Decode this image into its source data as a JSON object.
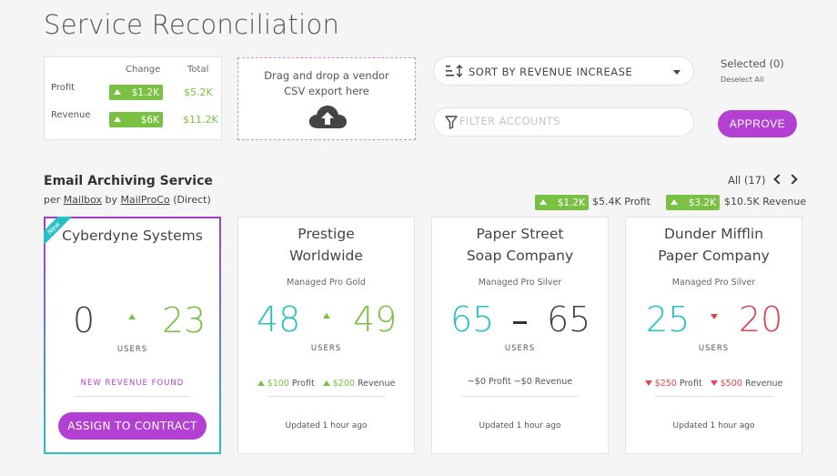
{
  "page": {
    "title": "Service Reconciliation"
  },
  "summary": {
    "change_header": "Change",
    "total_header": "Total",
    "rows": [
      {
        "label": "Profit",
        "change": "$1.2K",
        "total": "$5.2K"
      },
      {
        "label": "Revenue",
        "change": "$6K",
        "total": "$11.2K"
      }
    ]
  },
  "dropzone": {
    "text_line1": "Drag and drop a vendor",
    "text_line2": "CSV export here",
    "icon": "cloud-upload-icon"
  },
  "sort": {
    "label": "SORT BY REVENUE INCREASE",
    "icon": "sort-icon"
  },
  "filter": {
    "placeholder": "FILTER ACCOUNTS",
    "value": "",
    "icon": "funnel-icon"
  },
  "selection": {
    "selected_text": "Selected (0)",
    "deselect_all": "Deselect All"
  },
  "approve_label": "APPROVE",
  "service": {
    "title": "Email Archiving Service",
    "sub_per": "per",
    "sub_unit": "Mailbox",
    "sub_by": "by",
    "sub_vendor": "MailProCo",
    "sub_type": "(Direct)",
    "all_count": "All (17)",
    "profit_change": "$1.2K",
    "profit_total": "$5.4K Profit",
    "revenue_change": "$3.2K",
    "revenue_total": "$10.5K Revenue"
  },
  "cards": [
    {
      "name": "Cyberdyne Systems",
      "tag": "New",
      "from": "0",
      "to": "23",
      "users_label": "USERS",
      "new_revenue": "NEW REVENUE FOUND",
      "action": "ASSIGN TO CONTRACT"
    },
    {
      "name_line1": "Prestige",
      "name_line2": "Worldwide",
      "tier": "Managed Pro Gold",
      "from": "48",
      "to": "49",
      "users_label": "USERS",
      "profit": "$100",
      "profit_label": "Profit",
      "revenue": "$200",
      "revenue_label": "Revenue",
      "updated": "Updated 1 hour ago"
    },
    {
      "name_line1": "Paper Street",
      "name_line2": "Soap Company",
      "tier": "Managed Pro Silver",
      "from": "65",
      "to": "65",
      "users_label": "USERS",
      "footer": "~$0 Profit ~$0 Revenue",
      "updated": "Updated 1 hour ago"
    },
    {
      "name_line1": "Dunder Mifflin",
      "name_line2": "Paper Company",
      "tier": "Managed Pro Silver",
      "from": "25",
      "to": "20",
      "users_label": "USERS",
      "profit": "$250",
      "profit_label": "Profit",
      "revenue": "$500",
      "revenue_label": "Revenue",
      "updated": "Updated 1 hour ago"
    }
  ],
  "colors": {
    "green": "#7ac143",
    "teal": "#27c1c4",
    "purple": "#b43fd3",
    "red": "#e0444e"
  }
}
